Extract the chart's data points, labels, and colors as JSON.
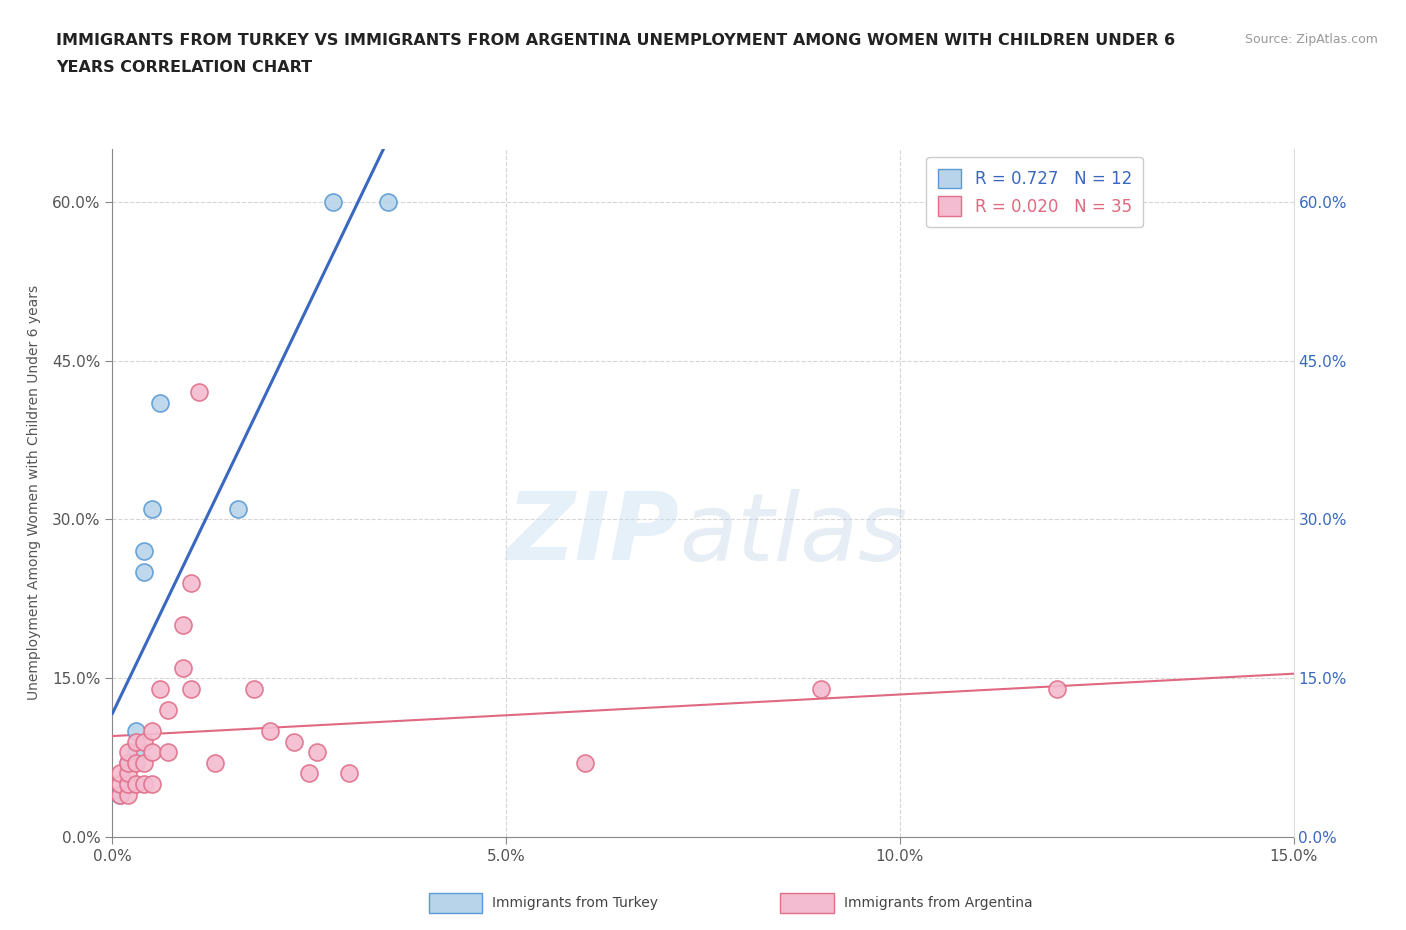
{
  "title_line1": "IMMIGRANTS FROM TURKEY VS IMMIGRANTS FROM ARGENTINA UNEMPLOYMENT AMONG WOMEN WITH CHILDREN UNDER 6",
  "title_line2": "YEARS CORRELATION CHART",
  "source": "Source: ZipAtlas.com",
  "ylabel": "Unemployment Among Women with Children Under 6 years",
  "xlim": [
    0.0,
    0.15
  ],
  "ylim": [
    0.0,
    0.65
  ],
  "xticks": [
    0.0,
    0.05,
    0.1,
    0.15
  ],
  "yticks": [
    0.0,
    0.15,
    0.3,
    0.45,
    0.6
  ],
  "xtick_labels": [
    "0.0%",
    "5.0%",
    "10.0%",
    "15.0%"
  ],
  "ytick_labels": [
    "0.0%",
    "15.0%",
    "30.0%",
    "45.0%",
    "60.0%"
  ],
  "turkey_color": "#b8d4ea",
  "turkey_edge_color": "#5b9bd5",
  "argentina_color": "#f4bcd0",
  "argentina_edge_color": "#e0708a",
  "trendline_turkey_color": "#3a68c0",
  "trendline_argentina_color": "#e06880",
  "legend_R_turkey": "0.727",
  "legend_N_turkey": "12",
  "legend_R_argentina": "0.020",
  "legend_N_argentina": "35",
  "watermark_zip": "ZIP",
  "watermark_atlas": "atlas",
  "background_color": "#ffffff",
  "grid_color": "#bbbbbb",
  "turkey_points_x": [
    0.001,
    0.002,
    0.002,
    0.003,
    0.003,
    0.004,
    0.004,
    0.005,
    0.006,
    0.016,
    0.028,
    0.035
  ],
  "turkey_points_y": [
    0.04,
    0.05,
    0.07,
    0.08,
    0.1,
    0.25,
    0.27,
    0.31,
    0.41,
    0.31,
    0.6,
    0.6
  ],
  "argentina_points_x": [
    0.001,
    0.001,
    0.001,
    0.002,
    0.002,
    0.002,
    0.002,
    0.002,
    0.003,
    0.003,
    0.003,
    0.004,
    0.004,
    0.004,
    0.005,
    0.005,
    0.005,
    0.006,
    0.007,
    0.007,
    0.009,
    0.009,
    0.01,
    0.01,
    0.011,
    0.013,
    0.018,
    0.02,
    0.023,
    0.025,
    0.026,
    0.03,
    0.06,
    0.09,
    0.12
  ],
  "argentina_points_y": [
    0.04,
    0.05,
    0.06,
    0.04,
    0.05,
    0.06,
    0.07,
    0.08,
    0.05,
    0.07,
    0.09,
    0.05,
    0.07,
    0.09,
    0.05,
    0.08,
    0.1,
    0.14,
    0.08,
    0.12,
    0.16,
    0.2,
    0.14,
    0.24,
    0.42,
    0.07,
    0.14,
    0.1,
    0.09,
    0.06,
    0.08,
    0.06,
    0.07,
    0.14,
    0.14
  ],
  "legend_turkey_label": "Immigrants from Turkey",
  "legend_argentina_label": "Immigrants from Argentina"
}
